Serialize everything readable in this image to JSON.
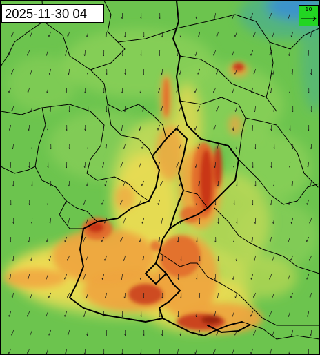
{
  "map": {
    "timestamp": "2025-11-30 04",
    "scale_label": "10",
    "colors": {
      "background_green": "#6cc44e",
      "light_green": "#8fd15a",
      "yellow_green": "#c9dc57",
      "yellow": "#f1dc52",
      "orange": "#f0a43e",
      "dark_orange": "#e2682a",
      "red": "#c63218",
      "dark_red": "#8e1e10",
      "blue": "#3a8fd4",
      "teal": "#4cb08a",
      "border": "#000000",
      "scale_box_fill": "#22d522"
    },
    "icons": {
      "wind_arrow": "wind-arrow-icon",
      "scale_arrow": "arrow-right-icon"
    }
  }
}
